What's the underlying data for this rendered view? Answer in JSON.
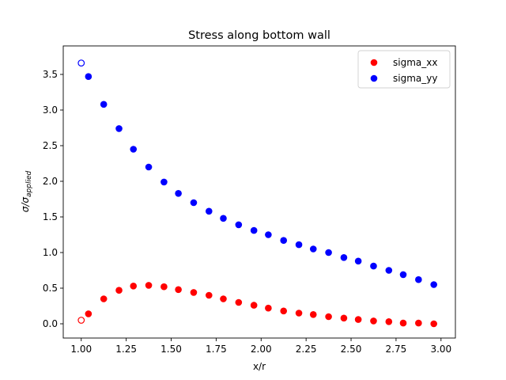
{
  "chart_data": {
    "type": "scatter",
    "title": "Stress along bottom wall",
    "xlabel": "x/r",
    "ylabel": {
      "main": "σ/σ",
      "subscript": "applied"
    },
    "xlim": [
      0.9,
      3.08
    ],
    "ylim": [
      -0.2,
      3.9
    ],
    "xticks": [
      "1.00",
      "1.25",
      "1.50",
      "1.75",
      "2.00",
      "2.25",
      "2.50",
      "2.75",
      "3.00"
    ],
    "yticks": [
      "0.0",
      "0.5",
      "1.0",
      "1.5",
      "2.0",
      "2.5",
      "3.0",
      "3.5"
    ],
    "legend_position": "top-right",
    "series": [
      {
        "name": "sigma_xx",
        "color": "#ff0000",
        "x": [
          1.04,
          1.125,
          1.21,
          1.29,
          1.375,
          1.46,
          1.54,
          1.625,
          1.71,
          1.79,
          1.875,
          1.96,
          2.04,
          2.125,
          2.21,
          2.29,
          2.375,
          2.46,
          2.54,
          2.625,
          2.71,
          2.79,
          2.875,
          2.96
        ],
        "y": [
          0.14,
          0.35,
          0.47,
          0.53,
          0.54,
          0.52,
          0.48,
          0.44,
          0.4,
          0.35,
          0.3,
          0.26,
          0.22,
          0.18,
          0.15,
          0.13,
          0.1,
          0.08,
          0.06,
          0.04,
          0.03,
          0.01,
          0.01,
          0.0
        ],
        "open_point": {
          "x": 1.0,
          "y": 0.05
        }
      },
      {
        "name": "sigma_yy",
        "color": "#0000ff",
        "x": [
          1.04,
          1.125,
          1.21,
          1.29,
          1.375,
          1.46,
          1.54,
          1.625,
          1.71,
          1.79,
          1.875,
          1.96,
          2.04,
          2.125,
          2.21,
          2.29,
          2.375,
          2.46,
          2.54,
          2.625,
          2.71,
          2.79,
          2.875,
          2.96
        ],
        "y": [
          3.47,
          3.08,
          2.74,
          2.45,
          2.2,
          1.99,
          1.83,
          1.7,
          1.58,
          1.48,
          1.39,
          1.31,
          1.25,
          1.17,
          1.11,
          1.05,
          1.0,
          0.93,
          0.88,
          0.81,
          0.75,
          0.69,
          0.62,
          0.55
        ],
        "open_point": {
          "x": 1.0,
          "y": 3.66
        }
      }
    ]
  }
}
